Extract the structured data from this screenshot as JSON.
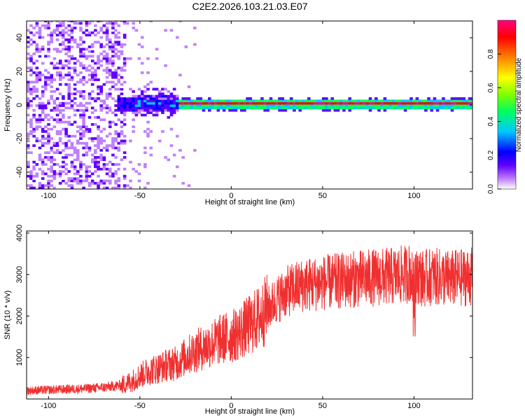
{
  "title": "C2E2.2026.103.21.03.E07",
  "chart_data": [
    {
      "type": "heatmap",
      "xlabel": "Height of straight line (km)",
      "ylabel": "Frequency (Hz)",
      "xlim": [
        -112,
        132
      ],
      "ylim": [
        -50,
        50
      ],
      "xticks": [
        -100,
        -50,
        0,
        50,
        100
      ],
      "yticks": [
        -40,
        -20,
        0,
        20,
        40
      ],
      "colorbar": {
        "label": "Normalized spectral amplitude",
        "range": [
          0,
          1
        ],
        "ticks": [
          "0.0",
          "0.2",
          "0.4",
          "0.6",
          "0.8"
        ],
        "colormap": [
          "#ffffff",
          "#c080ff",
          "#6000ff",
          "#0000ff",
          "#00c8ff",
          "#00ff60",
          "#80ff00",
          "#ffff00",
          "#ff8000",
          "#ff0000",
          "#ff0080"
        ]
      },
      "features": {
        "carrier_frequency_hz": 0,
        "carrier_strong_from_km": -30,
        "carrier_onset_km": -55,
        "noise_region_end_km": -58
      }
    },
    {
      "type": "line",
      "xlabel": "Height of straight line (km)",
      "ylabel": "SNR (10 * v/v)",
      "xlim": [
        -112,
        132
      ],
      "ylim": [
        0,
        4050
      ],
      "xticks": [
        -100,
        -50,
        0,
        50,
        100
      ],
      "yticks": [
        1000,
        2000,
        3000,
        4000
      ],
      "color": "#f03030",
      "series": [
        {
          "x": [
            -112,
            -100,
            -80,
            -70,
            -60,
            -55,
            -50,
            -45,
            -40,
            -35,
            -30,
            -25,
            -20,
            -15,
            -10,
            -5,
            0,
            5,
            10,
            15,
            20,
            25,
            30,
            35,
            40,
            50,
            60,
            70,
            80,
            90,
            95,
            98,
            100,
            102,
            105,
            110,
            120,
            132
          ],
          "y": [
            200,
            220,
            250,
            280,
            330,
            420,
            560,
            680,
            740,
            820,
            860,
            1020,
            1150,
            1250,
            1350,
            1450,
            1500,
            1620,
            1780,
            1950,
            2180,
            2400,
            2580,
            2680,
            2750,
            2800,
            2850,
            2900,
            2930,
            2960,
            3000,
            3050,
            2700,
            3000,
            2900,
            2950,
            2900,
            2950
          ]
        }
      ]
    }
  ]
}
